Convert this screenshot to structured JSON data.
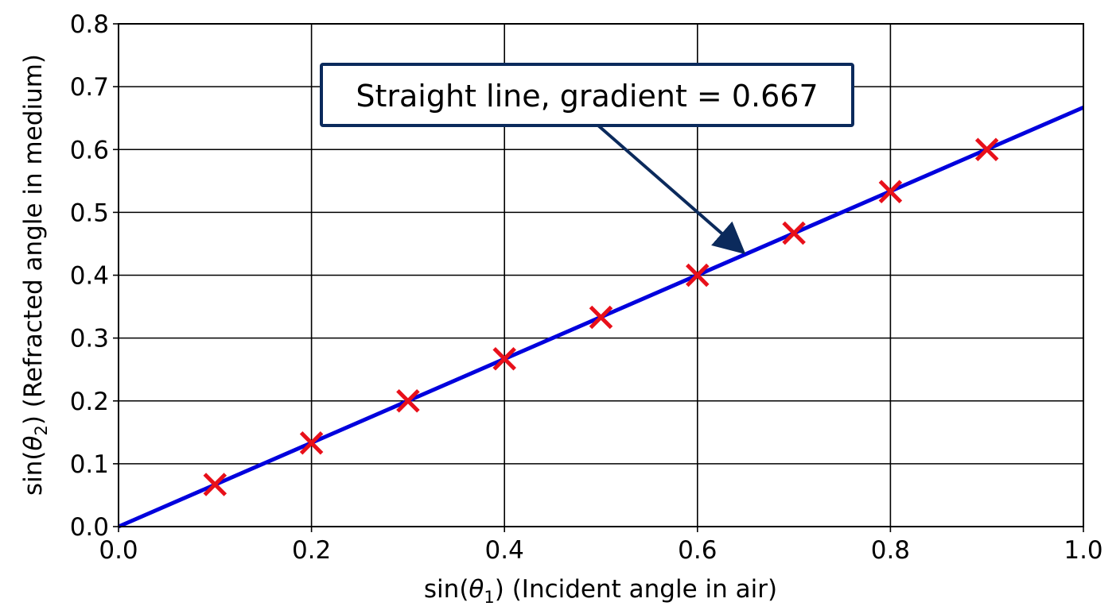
{
  "chart_data": {
    "type": "scatter",
    "title": "",
    "xlabel": {
      "prefix": "sin(",
      "symbol": "θ",
      "subscript": "1",
      "suffix": ") (Incident angle in air)"
    },
    "ylabel": {
      "prefix": "sin(",
      "symbol": "θ",
      "subscript": "2",
      "suffix": ") (Refracted angle in medium)"
    },
    "xlim": [
      0.0,
      1.0
    ],
    "ylim": [
      0.0,
      0.8
    ],
    "xticks": [
      "0.0",
      "0.2",
      "0.4",
      "0.6",
      "0.8",
      "1.0"
    ],
    "yticks": [
      "0.0",
      "0.1",
      "0.2",
      "0.3",
      "0.4",
      "0.5",
      "0.6",
      "0.7",
      "0.8"
    ],
    "grid": true,
    "series": [
      {
        "type": "scatter",
        "marker": "x",
        "color": "#e8101a",
        "x": [
          0.1,
          0.2,
          0.3,
          0.4,
          0.5,
          0.6,
          0.7,
          0.8,
          0.9
        ],
        "y": [
          0.067,
          0.133,
          0.2,
          0.267,
          0.333,
          0.4,
          0.467,
          0.533,
          0.6
        ]
      },
      {
        "type": "line",
        "color": "#0000dd",
        "x": [
          0.0,
          1.0
        ],
        "y": [
          0.0,
          0.667
        ]
      }
    ],
    "annotation": {
      "text": "Straight line, gradient = 0.667",
      "arrow_to": [
        0.645,
        0.44
      ],
      "border_color": "#0b2a5c"
    }
  }
}
